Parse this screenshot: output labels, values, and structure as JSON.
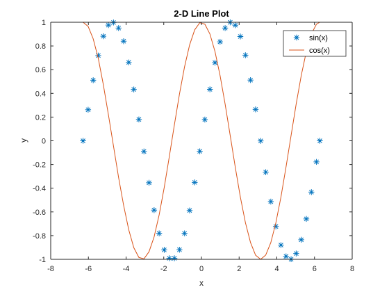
{
  "chart_data": {
    "type": "line",
    "title": "2-D Line Plot",
    "xlabel": "x",
    "ylabel": "y",
    "xlim": [
      -8,
      8
    ],
    "ylim": [
      -1,
      1
    ],
    "xticks": [
      -8,
      -6,
      -4,
      -2,
      0,
      2,
      4,
      6,
      8
    ],
    "yticks": [
      -1,
      -0.8,
      -0.6,
      -0.4,
      -0.2,
      0,
      0.2,
      0.4,
      0.6,
      0.8,
      1
    ],
    "grid": false,
    "legend_position": "top-right",
    "series": [
      {
        "name": "sin(x)",
        "style": "markers",
        "marker": "asterisk",
        "color": "#0072BD",
        "x": [
          -6.2832,
          -6.0138,
          -5.7445,
          -5.4752,
          -5.2059,
          -4.9366,
          -4.6673,
          -4.398,
          -4.1287,
          -3.8594,
          -3.5901,
          -3.3208,
          -3.0515,
          -2.7822,
          -2.5129,
          -2.2436,
          -1.9743,
          -1.705,
          -1.4357,
          -1.1664,
          -0.8971,
          -0.6278,
          -0.3585,
          -0.0892,
          0.1801,
          0.4494,
          0.7187,
          0.988,
          1.2573,
          1.5266,
          1.7959,
          2.0652,
          2.3345,
          2.6038,
          2.8731,
          3.1424,
          3.4117,
          3.681,
          3.9503,
          4.2196,
          4.4889,
          4.7582,
          5.0275,
          5.2968,
          5.5661,
          5.8354,
          6.1047,
          6.2832
        ],
        "y": [
          0.0,
          0.262,
          0.511,
          0.719,
          0.882,
          0.976,
          0.998,
          0.951,
          0.84,
          0.661,
          0.433,
          0.18,
          -0.09,
          -0.354,
          -0.585,
          -0.781,
          -0.92,
          -0.991,
          -0.991,
          -0.919,
          -0.781,
          -0.588,
          -0.351,
          -0.089,
          0.179,
          0.434,
          0.659,
          0.835,
          0.951,
          0.999,
          0.975,
          0.88,
          0.722,
          0.512,
          0.265,
          -0.001,
          -0.265,
          -0.513,
          -0.723,
          -0.88,
          -0.975,
          -0.999,
          -0.951,
          -0.835,
          -0.659,
          -0.433,
          -0.178,
          0.0
        ]
      },
      {
        "name": "cos(x)",
        "style": "line",
        "color": "#D95319",
        "x": [
          -6.2832,
          -6.0138,
          -5.7445,
          -5.4752,
          -5.2059,
          -4.9366,
          -4.6673,
          -4.398,
          -4.1287,
          -3.8594,
          -3.5901,
          -3.3208,
          -3.0515,
          -2.7822,
          -2.5129,
          -2.2436,
          -1.9743,
          -1.705,
          -1.4357,
          -1.1664,
          -0.8971,
          -0.6278,
          -0.3585,
          -0.0892,
          0.1801,
          0.4494,
          0.7187,
          0.988,
          1.2573,
          1.5266,
          1.7959,
          2.0652,
          2.3345,
          2.6038,
          2.8731,
          3.1424,
          3.4117,
          3.681,
          3.9503,
          4.2196,
          4.4889,
          4.7582,
          5.0275,
          5.2968,
          5.5661,
          5.8354,
          6.1047,
          6.2832
        ],
        "y": [
          1.0,
          0.965,
          0.86,
          0.695,
          0.472,
          0.219,
          -0.045,
          -0.309,
          -0.546,
          -0.75,
          -0.902,
          -0.984,
          -0.996,
          -0.936,
          -0.811,
          -0.624,
          -0.393,
          -0.133,
          0.135,
          0.394,
          0.624,
          0.809,
          0.936,
          0.996,
          0.984,
          0.901,
          0.753,
          0.551,
          0.309,
          0.044,
          -0.223,
          -0.475,
          -0.691,
          -0.858,
          -0.965,
          -1.0,
          -0.964,
          -0.859,
          -0.691,
          -0.474,
          -0.221,
          0.046,
          0.31,
          0.551,
          0.752,
          0.902,
          0.984,
          1.0
        ]
      }
    ]
  }
}
